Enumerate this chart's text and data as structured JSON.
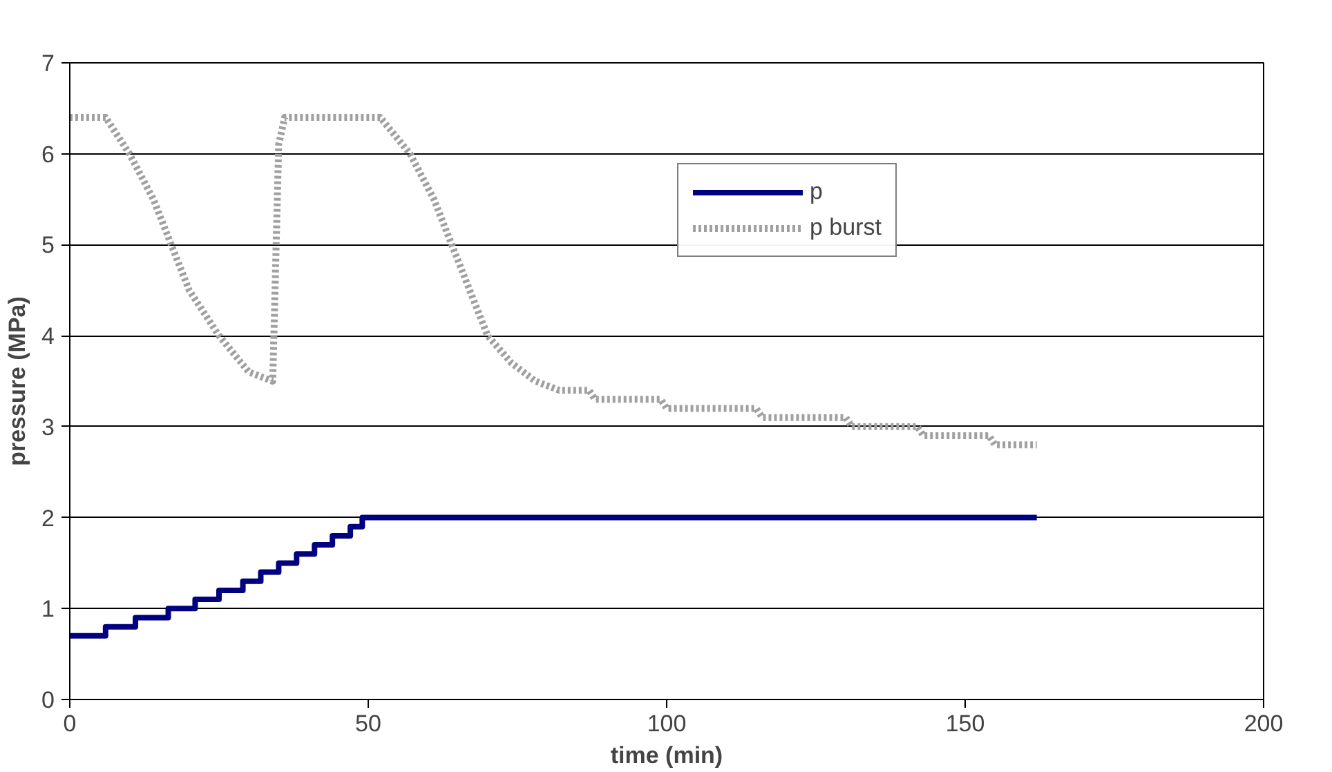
{
  "chart_data": {
    "type": "line",
    "xlabel": "time (min)",
    "ylabel": "pressure (MPa)",
    "xlim": [
      0,
      200
    ],
    "xticks": [
      0,
      50,
      100,
      150,
      200
    ],
    "ylim": [
      0,
      7
    ],
    "yticks": [
      0,
      1,
      2,
      3,
      4,
      5,
      6,
      7
    ],
    "grid": "y",
    "legend": "right",
    "marker": "none",
    "series": [
      {
        "name": "p",
        "type": "step",
        "color": "#000080",
        "line_style": "solid",
        "x": [
          0,
          6,
          11,
          16.5,
          21,
          25,
          29,
          32,
          35,
          38,
          41,
          44,
          47,
          49,
          162
        ],
        "values": [
          0.7,
          0.8,
          0.9,
          1.0,
          1.1,
          1.2,
          1.3,
          1.4,
          1.5,
          1.6,
          1.7,
          1.8,
          1.9,
          2.0,
          2.0
        ]
      },
      {
        "name": "p burst",
        "color": "#a0a0a0",
        "line_style": "dotted",
        "x": [
          0,
          6,
          10,
          14,
          17,
          20,
          25,
          30,
          34,
          35,
          36,
          52,
          57,
          61,
          64,
          67,
          70,
          74,
          78,
          82,
          87,
          88,
          99,
          100,
          115,
          116,
          130,
          131,
          142,
          143,
          154,
          155,
          162
        ],
        "values": [
          6.4,
          6.4,
          6.0,
          5.5,
          5.0,
          4.5,
          4.0,
          3.6,
          3.5,
          6.1,
          6.4,
          6.4,
          6.0,
          5.5,
          5.0,
          4.5,
          4.0,
          3.7,
          3.5,
          3.4,
          3.4,
          3.3,
          3.3,
          3.2,
          3.2,
          3.1,
          3.1,
          3.0,
          3.0,
          2.9,
          2.9,
          2.8,
          2.8
        ]
      }
    ]
  }
}
